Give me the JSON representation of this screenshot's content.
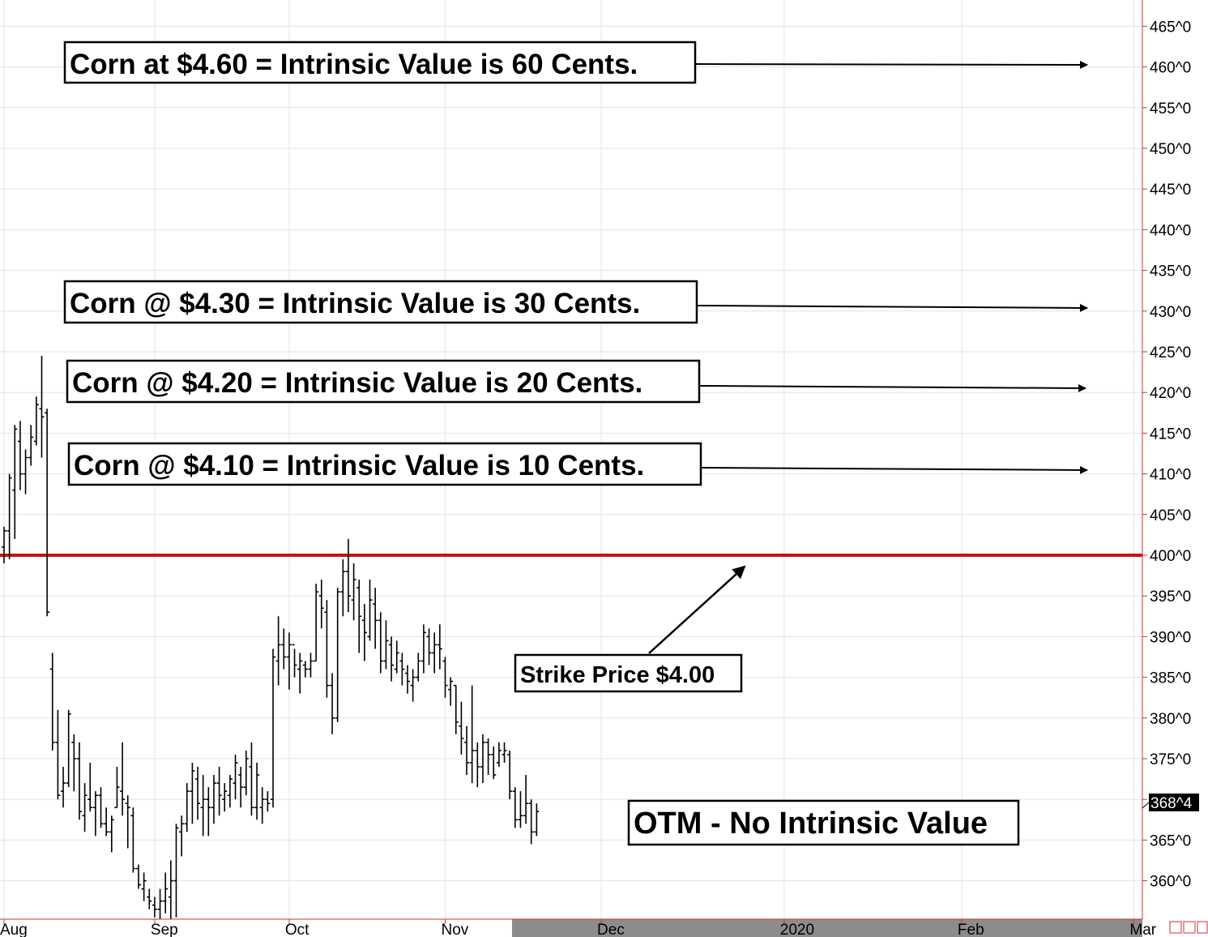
{
  "chart_data": {
    "type": "ohlc-bar",
    "y_axis": {
      "min": 355,
      "max": 467,
      "ticks": [
        465,
        460,
        455,
        450,
        445,
        440,
        435,
        430,
        425,
        420,
        415,
        410,
        405,
        400,
        395,
        390,
        385,
        380,
        375,
        370,
        365,
        360
      ],
      "tick_labels": [
        "465^0",
        "460^0",
        "455^0",
        "450^0",
        "445^0",
        "440^0",
        "435^0",
        "430^0",
        "425^0",
        "420^0",
        "415^0",
        "410^0",
        "405^0",
        "400^0",
        "395^0",
        "390^0",
        "385^0",
        "380^0",
        "375^0",
        "370^0",
        "365^0",
        "360^0"
      ]
    },
    "x_axis": {
      "labels": [
        "Aug",
        "Sep",
        "Oct",
        "Nov",
        "Dec",
        "2020",
        "Feb",
        "Mar"
      ],
      "label_index": [
        0,
        28,
        53,
        82,
        111,
        145,
        178,
        210
      ]
    },
    "grid": true,
    "last_price_label": "368^4",
    "strike_line": {
      "value": 400,
      "color": "#cc1111"
    },
    "bars": [
      {
        "h": 403.5,
        "l": 399.0,
        "o": 401.0,
        "c": 403.0
      },
      {
        "h": 410.0,
        "l": 399.5,
        "o": 403.0,
        "c": 409.5
      },
      {
        "h": 416.0,
        "l": 402.0,
        "o": 408.0,
        "c": 415.5
      },
      {
        "h": 416.5,
        "l": 408.0,
        "o": 414.0,
        "c": 410.0
      },
      {
        "h": 413.0,
        "l": 407.5,
        "o": 410.0,
        "c": 412.0
      },
      {
        "h": 416.0,
        "l": 411.0,
        "o": 412.0,
        "c": 414.5
      },
      {
        "h": 419.5,
        "l": 413.5,
        "o": 414.0,
        "c": 418.5
      },
      {
        "h": 424.5,
        "l": 412.0,
        "o": 418.0,
        "c": 417.0
      },
      {
        "h": 418.0,
        "l": 392.5,
        "o": 417.5,
        "c": 393.0
      },
      {
        "h": 388.0,
        "l": 376.0,
        "o": 386.0,
        "c": 377.0
      },
      {
        "h": 381.0,
        "l": 370.0,
        "o": 377.0,
        "c": 370.5
      },
      {
        "h": 374.0,
        "l": 369.0,
        "o": 371.0,
        "c": 372.0
      },
      {
        "h": 381.0,
        "l": 371.5,
        "o": 372.0,
        "c": 380.5
      },
      {
        "h": 378.0,
        "l": 371.0,
        "o": 377.0,
        "c": 375.0
      },
      {
        "h": 377.0,
        "l": 367.5,
        "o": 375.0,
        "c": 368.5
      },
      {
        "h": 372.0,
        "l": 366.0,
        "o": 368.0,
        "c": 370.5
      },
      {
        "h": 374.5,
        "l": 368.5,
        "o": 370.0,
        "c": 369.0
      },
      {
        "h": 371.0,
        "l": 365.5,
        "o": 369.0,
        "c": 370.5
      },
      {
        "h": 371.5,
        "l": 366.5,
        "o": 370.5,
        "c": 367.0
      },
      {
        "h": 369.0,
        "l": 365.5,
        "o": 367.0,
        "c": 366.0
      },
      {
        "h": 368.0,
        "l": 363.5,
        "o": 366.0,
        "c": 367.5
      },
      {
        "h": 374.0,
        "l": 369.0,
        "o": 369.0,
        "c": 371.5
      },
      {
        "h": 377.0,
        "l": 368.0,
        "o": 371.0,
        "c": 370.0
      },
      {
        "h": 370.5,
        "l": 364.0,
        "o": 369.5,
        "c": 369.0
      },
      {
        "h": 369.0,
        "l": 361.0,
        "o": 368.0,
        "c": 361.5
      },
      {
        "h": 362.0,
        "l": 359.0,
        "o": 361.5,
        "c": 359.5
      },
      {
        "h": 361.0,
        "l": 357.5,
        "o": 359.0,
        "c": 360.0
      },
      {
        "h": 359.0,
        "l": 356.5,
        "o": 358.0,
        "c": 357.5
      },
      {
        "h": 358.0,
        "l": 355.5,
        "o": 357.0,
        "c": 356.5
      },
      {
        "h": 359.0,
        "l": 355.0,
        "o": 356.5,
        "c": 357.5
      },
      {
        "h": 361.0,
        "l": 356.0,
        "o": 357.5,
        "c": 359.0
      },
      {
        "h": 362.5,
        "l": 355.0,
        "o": 358.0,
        "c": 360.0
      },
      {
        "h": 367.0,
        "l": 355.5,
        "o": 360.0,
        "c": 366.5
      },
      {
        "h": 368.0,
        "l": 363.0,
        "o": 366.0,
        "c": 367.0
      },
      {
        "h": 372.0,
        "l": 366.0,
        "o": 367.0,
        "c": 371.0
      },
      {
        "h": 374.5,
        "l": 367.0,
        "o": 371.0,
        "c": 373.5
      },
      {
        "h": 374.0,
        "l": 367.5,
        "o": 372.5,
        "c": 369.5
      },
      {
        "h": 373.0,
        "l": 365.5,
        "o": 369.0,
        "c": 370.0
      },
      {
        "h": 371.5,
        "l": 365.5,
        "o": 370.0,
        "c": 369.0
      },
      {
        "h": 373.0,
        "l": 367.0,
        "o": 369.0,
        "c": 372.0
      },
      {
        "h": 374.0,
        "l": 368.0,
        "o": 372.0,
        "c": 370.5
      },
      {
        "h": 372.0,
        "l": 368.5,
        "o": 370.0,
        "c": 371.0
      },
      {
        "h": 373.0,
        "l": 369.0,
        "o": 370.5,
        "c": 372.5
      },
      {
        "h": 375.5,
        "l": 370.0,
        "o": 372.0,
        "c": 374.5
      },
      {
        "h": 374.0,
        "l": 369.0,
        "o": 373.0,
        "c": 371.5
      },
      {
        "h": 376.0,
        "l": 370.5,
        "o": 371.5,
        "c": 375.0
      },
      {
        "h": 377.0,
        "l": 368.0,
        "o": 374.0,
        "c": 369.0
      },
      {
        "h": 374.5,
        "l": 367.5,
        "o": 369.0,
        "c": 373.0
      },
      {
        "h": 371.5,
        "l": 367.0,
        "o": 369.0,
        "c": 370.0
      },
      {
        "h": 371.0,
        "l": 368.5,
        "o": 370.0,
        "c": 369.5
      },
      {
        "h": 388.5,
        "l": 369.0,
        "o": 370.0,
        "c": 387.5
      },
      {
        "h": 392.5,
        "l": 384.0,
        "o": 387.0,
        "c": 389.0
      },
      {
        "h": 391.0,
        "l": 386.0,
        "o": 389.0,
        "c": 387.5
      },
      {
        "h": 390.5,
        "l": 383.5,
        "o": 387.5,
        "c": 389.0
      },
      {
        "h": 388.5,
        "l": 385.0,
        "o": 389.0,
        "c": 386.5
      },
      {
        "h": 388.0,
        "l": 383.0,
        "o": 386.0,
        "c": 387.0
      },
      {
        "h": 387.0,
        "l": 385.0,
        "o": 386.5,
        "c": 386.0
      },
      {
        "h": 388.0,
        "l": 385.0,
        "o": 386.0,
        "c": 387.0
      },
      {
        "h": 396.5,
        "l": 387.0,
        "o": 387.0,
        "c": 395.5
      },
      {
        "h": 397.0,
        "l": 391.0,
        "o": 395.0,
        "c": 393.5
      },
      {
        "h": 394.5,
        "l": 382.5,
        "o": 393.0,
        "c": 384.0
      },
      {
        "h": 385.5,
        "l": 378.0,
        "o": 384.0,
        "c": 380.0
      },
      {
        "h": 396.0,
        "l": 379.5,
        "o": 380.0,
        "c": 395.5
      },
      {
        "h": 399.5,
        "l": 392.5,
        "o": 395.5,
        "c": 398.0
      },
      {
        "h": 402.0,
        "l": 393.0,
        "o": 398.0,
        "c": 395.0
      },
      {
        "h": 399.0,
        "l": 392.0,
        "o": 394.5,
        "c": 397.0
      },
      {
        "h": 397.0,
        "l": 388.0,
        "o": 396.0,
        "c": 392.5
      },
      {
        "h": 394.0,
        "l": 387.0,
        "o": 392.0,
        "c": 390.5
      },
      {
        "h": 397.0,
        "l": 389.5,
        "o": 390.0,
        "c": 394.5
      },
      {
        "h": 396.0,
        "l": 388.5,
        "o": 394.0,
        "c": 392.0
      },
      {
        "h": 393.0,
        "l": 385.5,
        "o": 392.0,
        "c": 387.0
      },
      {
        "h": 392.0,
        "l": 386.0,
        "o": 387.0,
        "c": 389.5
      },
      {
        "h": 390.0,
        "l": 384.5,
        "o": 389.0,
        "c": 386.5
      },
      {
        "h": 389.5,
        "l": 385.5,
        "o": 386.0,
        "c": 388.0
      },
      {
        "h": 388.0,
        "l": 384.0,
        "o": 387.0,
        "c": 386.0
      },
      {
        "h": 386.5,
        "l": 383.0,
        "o": 385.5,
        "c": 384.5
      },
      {
        "h": 386.0,
        "l": 382.0,
        "o": 384.0,
        "c": 385.0
      },
      {
        "h": 388.0,
        "l": 384.5,
        "o": 385.0,
        "c": 387.0
      },
      {
        "h": 391.5,
        "l": 385.5,
        "o": 387.0,
        "c": 390.5
      },
      {
        "h": 391.0,
        "l": 386.5,
        "o": 390.0,
        "c": 388.0
      },
      {
        "h": 390.5,
        "l": 385.5,
        "o": 388.0,
        "c": 389.0
      },
      {
        "h": 391.5,
        "l": 386.0,
        "o": 389.0,
        "c": 388.5
      },
      {
        "h": 387.5,
        "l": 382.5,
        "o": 387.0,
        "c": 384.0
      },
      {
        "h": 385.0,
        "l": 381.5,
        "o": 383.5,
        "c": 384.5
      },
      {
        "h": 384.0,
        "l": 378.0,
        "o": 384.0,
        "c": 379.5
      },
      {
        "h": 382.0,
        "l": 375.5,
        "o": 379.0,
        "c": 377.5
      },
      {
        "h": 379.0,
        "l": 373.0,
        "o": 377.0,
        "c": 374.5
      },
      {
        "h": 384.0,
        "l": 372.0,
        "o": 374.5,
        "c": 376.0
      },
      {
        "h": 377.0,
        "l": 371.5,
        "o": 376.0,
        "c": 374.0
      },
      {
        "h": 378.0,
        "l": 372.0,
        "o": 374.0,
        "c": 377.0
      },
      {
        "h": 377.5,
        "l": 373.0,
        "o": 377.0,
        "c": 375.5
      },
      {
        "h": 376.5,
        "l": 372.5,
        "o": 375.5,
        "c": 373.0
      },
      {
        "h": 377.0,
        "l": 374.0,
        "o": 374.5,
        "c": 376.0
      },
      {
        "h": 377.0,
        "l": 374.5,
        "o": 375.5,
        "c": 376.0
      },
      {
        "h": 376.0,
        "l": 370.0,
        "o": 375.5,
        "c": 371.0
      },
      {
        "h": 371.5,
        "l": 366.5,
        "o": 371.0,
        "c": 367.5
      },
      {
        "h": 371.0,
        "l": 366.5,
        "o": 367.5,
        "c": 368.0
      },
      {
        "h": 373.0,
        "l": 367.0,
        "o": 368.0,
        "c": 369.5
      },
      {
        "h": 370.0,
        "l": 364.5,
        "o": 369.5,
        "c": 366.0
      },
      {
        "h": 369.5,
        "l": 365.5,
        "o": 366.0,
        "c": 368.5
      }
    ]
  },
  "annotations": [
    {
      "text": "Corn at $4.60 = Intrinsic Value is 60 Cents.",
      "value": 460
    },
    {
      "text": "Corn @ $4.30 = Intrinsic Value is 30 Cents.",
      "value": 430
    },
    {
      "text": "Corn @ $4.20 = Intrinsic Value is 20 Cents.",
      "value": 420
    },
    {
      "text": "Corn @ $4.10 = Intrinsic Value is 10 Cents.",
      "value": 410
    }
  ],
  "strike_label": "Strike Price $4.00",
  "otm_label": "OTM - No Intrinsic Value"
}
